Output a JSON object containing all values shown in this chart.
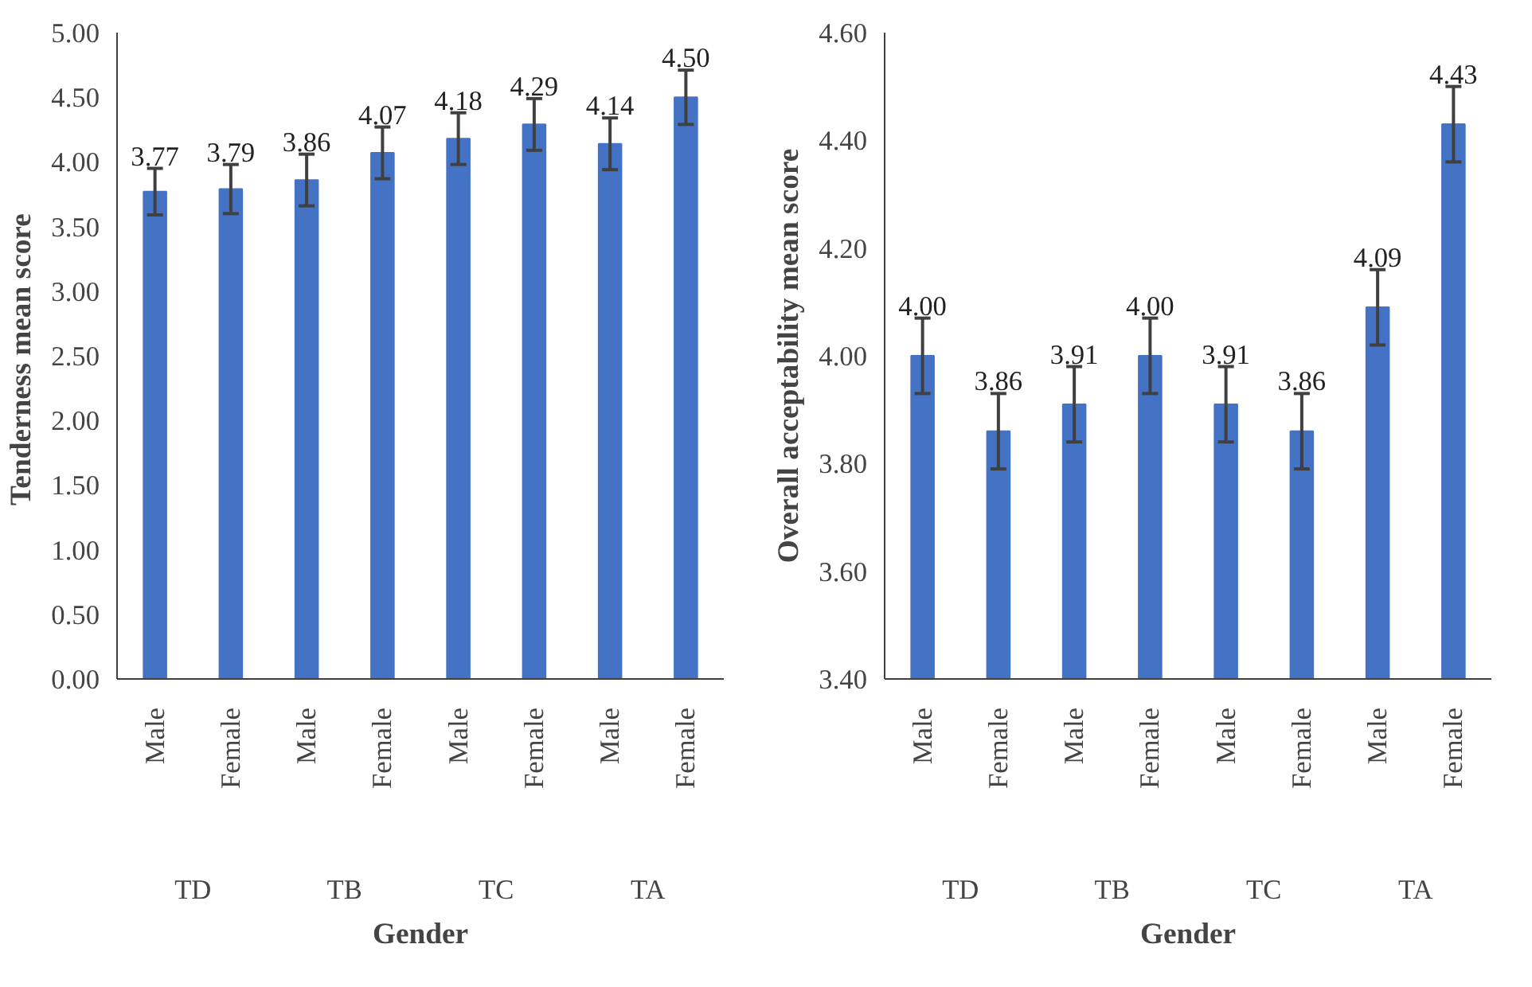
{
  "chart_data": [
    {
      "type": "bar",
      "categories": [
        "Male",
        "Female",
        "Male",
        "Female",
        "Male",
        "Female",
        "Male",
        "Female"
      ],
      "values": [
        3.77,
        3.79,
        3.86,
        4.07,
        4.18,
        4.29,
        4.14,
        4.5
      ],
      "errors": [
        0.18,
        0.19,
        0.2,
        0.2,
        0.2,
        0.2,
        0.2,
        0.21
      ],
      "color": "#4472c4",
      "value_labels": [
        "3.77",
        "3.79",
        "3.86",
        "4.07",
        "4.18",
        "4.29",
        "4.14",
        "4.50"
      ],
      "grid": false,
      "xlabel": "Gender",
      "ylabel": "Tenderness  mean score",
      "annotations": [
        "TD",
        "TB",
        "TC",
        "TA"
      ],
      "ylim": [
        0,
        5
      ],
      "yticks": [
        {
          "value": 0,
          "label": "0.00"
        },
        {
          "value": 0.5,
          "label": "0.50"
        },
        {
          "value": 1,
          "label": "1.00"
        },
        {
          "value": 1.5,
          "label": "1.50"
        },
        {
          "value": 2,
          "label": "2.00"
        },
        {
          "value": 2.5,
          "label": "2.50"
        },
        {
          "value": 3,
          "label": "3.00"
        },
        {
          "value": 3.5,
          "label": "3.50"
        },
        {
          "value": 4,
          "label": "4.00"
        },
        {
          "value": 4.5,
          "label": "4.50"
        },
        {
          "value": 5,
          "label": "5.00"
        }
      ]
    },
    {
      "type": "bar",
      "categories": [
        "Male",
        "Female",
        "Male",
        "Female",
        "Male",
        "Female",
        "Male",
        "Female"
      ],
      "values": [
        4.0,
        3.86,
        3.91,
        4.0,
        3.91,
        3.86,
        4.09,
        4.43
      ],
      "errors": [
        0.07,
        0.07,
        0.07,
        0.07,
        0.07,
        0.07,
        0.07,
        0.07
      ],
      "color": "#4472c4",
      "value_labels": [
        "4.00",
        "3.86",
        "3.91",
        "4.00",
        "3.91",
        "3.86",
        "4.09",
        "4.43"
      ],
      "grid": false,
      "xlabel": "Gender",
      "ylabel": "Overall acceptability mean score",
      "annotations": [
        "TD",
        "TB",
        "TC",
        "TA"
      ],
      "ylim": [
        3.4,
        4.6
      ],
      "yticks": [
        {
          "value": 3.4,
          "label": "3.40"
        },
        {
          "value": 3.6,
          "label": "3.60"
        },
        {
          "value": 3.8,
          "label": "3.80"
        },
        {
          "value": 4.0,
          "label": "4.00"
        },
        {
          "value": 4.2,
          "label": "4.20"
        },
        {
          "value": 4.4,
          "label": "4.40"
        },
        {
          "value": 4.6,
          "label": "4.60"
        }
      ]
    }
  ]
}
